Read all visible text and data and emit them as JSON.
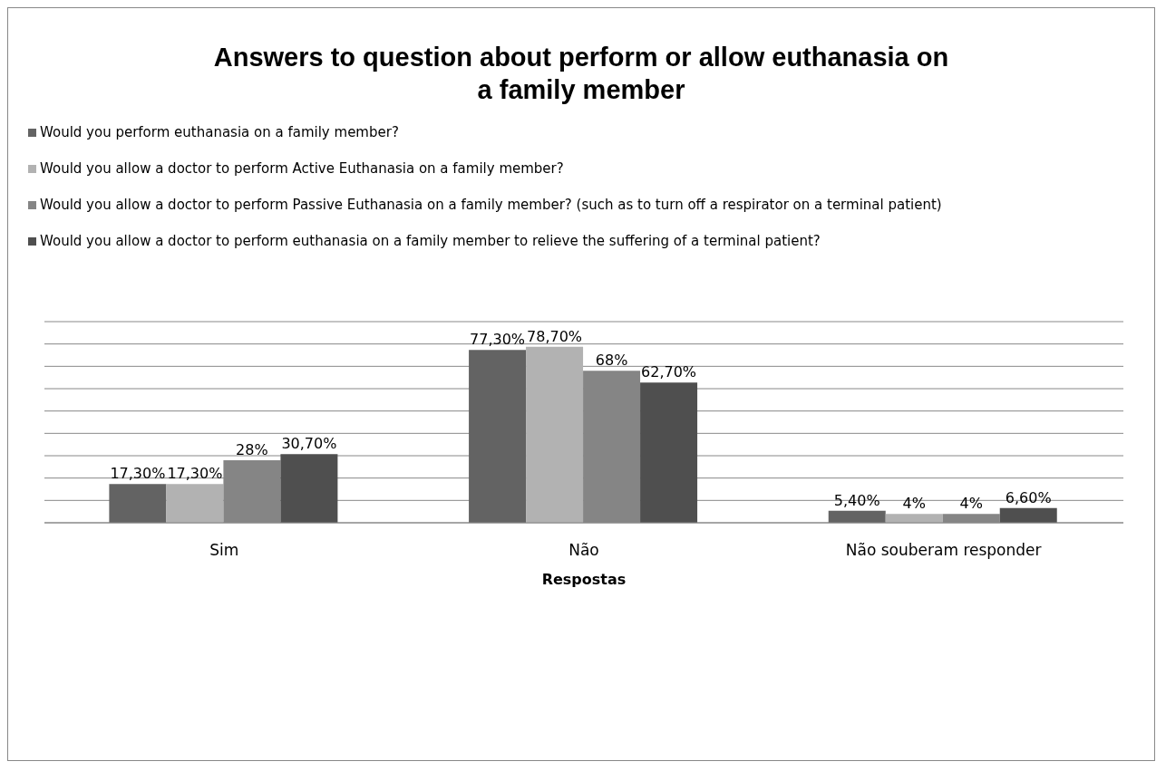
{
  "chart_data": {
    "type": "bar",
    "title": "Answers to question about perform or allow euthanasia on a family member",
    "xlabel": "Respostas",
    "categories": [
      "Sim",
      "Não",
      "Não souberam responder"
    ],
    "series": [
      {
        "name": "Would you perform euthanasia on a family member?",
        "color": "#636363",
        "values": [
          17.3,
          77.3,
          5.4
        ],
        "value_labels": [
          "17,30%",
          "77,30%",
          "5,40%"
        ]
      },
      {
        "name": "Would you allow a doctor to perform Active Euthanasia on a family member?",
        "color": "#b2b2b2",
        "values": [
          17.3,
          78.7,
          4
        ],
        "value_labels": [
          "17,30%",
          "78,70%",
          "4%"
        ]
      },
      {
        "name": "Would you allow a doctor to perform Passive Euthanasia on a family member? (such as to turn off a respirator on a terminal patient)",
        "color": "#858585",
        "values": [
          28,
          68,
          4
        ],
        "value_labels": [
          "28%",
          "68%",
          "4%"
        ]
      },
      {
        "name": "Would you allow a doctor to perform euthanasia on a family member to relieve the suffering of a terminal patient?",
        "color": "#4f4f4f",
        "values": [
          30.7,
          62.7,
          6.6
        ],
        "value_labels": [
          "30,70%",
          "62,70%",
          "6,60%"
        ]
      }
    ],
    "ylim": [
      0,
      90
    ],
    "yticks": [
      {
        "value": 0,
        "label": null
      },
      {
        "value": 10,
        "label": null
      },
      {
        "value": 20,
        "label": null
      },
      {
        "value": 30,
        "label": null
      },
      {
        "value": 40,
        "label": null
      },
      {
        "value": 50,
        "label": null
      },
      {
        "value": 60,
        "label": null
      },
      {
        "value": 70,
        "label": null
      },
      {
        "value": 80,
        "label": null
      },
      {
        "value": 90,
        "label": null
      }
    ],
    "grid": "y",
    "legend": "top",
    "tick_labels": "x"
  }
}
